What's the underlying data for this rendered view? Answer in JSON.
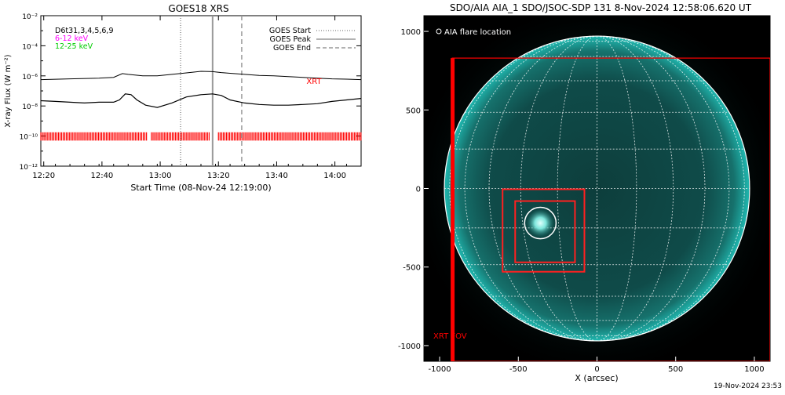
{
  "footer_timestamp": "19-Nov-2024 23:53",
  "chart_data": [
    {
      "type": "line",
      "title": "GOES18 XRS",
      "xlabel": "Start Time (08-Nov-24 12:19:00)",
      "ylabel": "X-ray Flux (W m⁻²)",
      "x_unit": "minutes after 12:19:00",
      "xlim": [
        0,
        110
      ],
      "ylim_log10": [
        -12,
        -2
      ],
      "ytick_exponents": [
        -12,
        -10,
        -8,
        -6,
        -4,
        -2
      ],
      "ytick_labels": [
        "10⁻¹²",
        "10⁻¹⁰",
        "10⁻⁸",
        "10⁻⁶",
        "10⁻⁴",
        "10⁻²"
      ],
      "xticks": [
        1,
        21,
        41,
        61,
        81,
        101
      ],
      "xtick_labels": [
        "12:20",
        "12:40",
        "13:00",
        "13:20",
        "13:40",
        "14:00"
      ],
      "legend_left": [
        {
          "text": "D6t31,3,4,5,6,9",
          "color": "#000000"
        },
        {
          "text": "6-12 keV",
          "color": "#ff00ff"
        },
        {
          "text": "12-25 keV",
          "color": "#00cc00"
        }
      ],
      "legend_right": [
        {
          "text": "GOES Start",
          "style": "dotted"
        },
        {
          "text": "GOES Peak",
          "style": "solid"
        },
        {
          "text": "GOES End",
          "style": "dashed"
        }
      ],
      "xrt_label": "XRT",
      "goes_start": 48,
      "goes_peak": 59,
      "goes_end": 69,
      "series": [
        {
          "name": "GOES long",
          "x": [
            0,
            10,
            20,
            25,
            28,
            30,
            35,
            40,
            45,
            50,
            55,
            59,
            62,
            65,
            70,
            75,
            80,
            85,
            90,
            95,
            100,
            105,
            110
          ],
          "log10_flux": [
            -6.25,
            -6.2,
            -6.15,
            -6.1,
            -5.85,
            -5.9,
            -6.0,
            -6.0,
            -5.9,
            -5.8,
            -5.7,
            -5.72,
            -5.78,
            -5.83,
            -5.9,
            -5.97,
            -6.0,
            -6.05,
            -6.1,
            -6.15,
            -6.2,
            -6.22,
            -6.25
          ]
        },
        {
          "name": "GOES short",
          "x": [
            0,
            5,
            10,
            15,
            20,
            25,
            27,
            29,
            31,
            33,
            36,
            40,
            45,
            50,
            55,
            59,
            62,
            65,
            70,
            75,
            80,
            85,
            90,
            95,
            100,
            105,
            110
          ],
          "log10_flux": [
            -7.65,
            -7.7,
            -7.75,
            -7.8,
            -7.75,
            -7.75,
            -7.6,
            -7.2,
            -7.25,
            -7.6,
            -7.95,
            -8.1,
            -7.8,
            -7.4,
            -7.25,
            -7.2,
            -7.3,
            -7.6,
            -7.8,
            -7.9,
            -7.95,
            -7.95,
            -7.9,
            -7.85,
            -7.7,
            -7.6,
            -7.5
          ]
        }
      ],
      "xrt_coverage": [
        [
          0,
          36.5
        ],
        [
          38,
          58
        ],
        [
          61,
          110
        ]
      ]
    },
    {
      "type": "image",
      "title": "SDO/AIA AIA_1 SDO/JSOC-SDP 131  8-Nov-2024 12:58:06.620 UT",
      "xlabel": "X (arcsec)",
      "ylabel": "",
      "xlim": [
        -1100,
        1100
      ],
      "ylim": [
        -1100,
        1100
      ],
      "xticks": [
        -1000,
        -500,
        0,
        500,
        1000
      ],
      "yticks": [
        -1000,
        -500,
        0,
        500,
        1000
      ],
      "legend": "AIA flare location",
      "solar_radius": 970,
      "limb_color": "#20b8b0",
      "grid_color": "#ffffff",
      "flare_location": {
        "x": -360,
        "y": -220,
        "radius": 100
      },
      "xrt_fov": {
        "x": [
          -920,
          1100
        ],
        "y": [
          -1100,
          830
        ],
        "label": "XRT FOV"
      },
      "boxes": [
        {
          "x": [
            -600,
            -80
          ],
          "y": [
            -530,
            -5
          ]
        },
        {
          "x": [
            -520,
            -140
          ],
          "y": [
            -470,
            -80
          ]
        }
      ]
    }
  ]
}
